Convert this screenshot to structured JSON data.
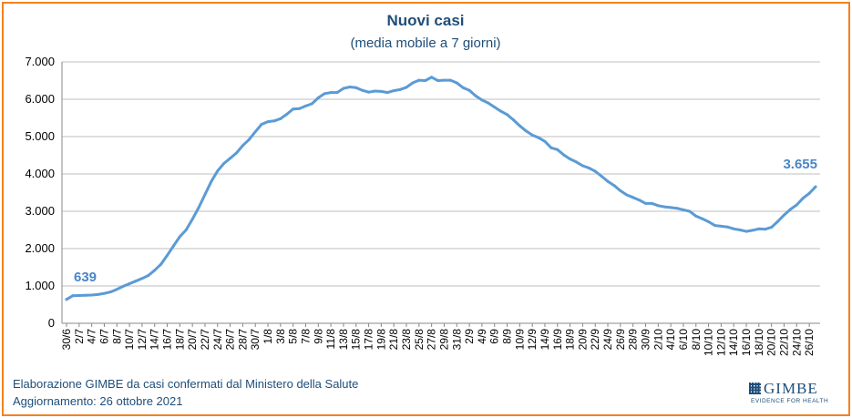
{
  "chart_data": {
    "type": "line",
    "title": "Nuovi casi",
    "subtitle": "(media mobile a 7 giorni)",
    "ylim": [
      0,
      7000
    ],
    "yticks": [
      {
        "value": 0,
        "label": "0"
      },
      {
        "value": 1000,
        "label": "1.000"
      },
      {
        "value": 2000,
        "label": "2.000"
      },
      {
        "value": 3000,
        "label": "3.000"
      },
      {
        "value": 4000,
        "label": "4.000"
      },
      {
        "value": 5000,
        "label": "5.000"
      },
      {
        "value": 6000,
        "label": "6.000"
      },
      {
        "value": 7000,
        "label": "7.000"
      }
    ],
    "grid": true,
    "line_color": "#5b9bd5",
    "label_color": "#4a86c8",
    "xtick_labels": [
      "30/6",
      "2/7",
      "4/7",
      "6/7",
      "8/7",
      "10/7",
      "12/7",
      "14/7",
      "16/7",
      "18/7",
      "20/7",
      "22/7",
      "24/7",
      "26/7",
      "28/7",
      "30/7",
      "1/8",
      "3/8",
      "5/8",
      "7/8",
      "9/8",
      "11/8",
      "13/8",
      "15/8",
      "17/8",
      "19/8",
      "21/8",
      "23/8",
      "25/8",
      "27/8",
      "29/8",
      "31/8",
      "2/9",
      "4/9",
      "6/9",
      "8/9",
      "10/9",
      "12/9",
      "14/9",
      "16/9",
      "18/9",
      "20/9",
      "22/9",
      "24/9",
      "26/9",
      "28/9",
      "30/9",
      "2/10",
      "4/10",
      "6/10",
      "8/10",
      "10/10",
      "12/10",
      "14/10",
      "16/10",
      "18/10",
      "20/10",
      "22/10",
      "24/10",
      "26/10"
    ],
    "series": [
      {
        "values": [
          639,
          740,
          745,
          750,
          755,
          770,
          800,
          840,
          910,
          990,
          1060,
          1130,
          1200,
          1280,
          1420,
          1580,
          1820,
          2070,
          2320,
          2500,
          2790,
          3100,
          3450,
          3800,
          4080,
          4280,
          4420,
          4560,
          4760,
          4920,
          5130,
          5330,
          5400,
          5420,
          5480,
          5600,
          5740,
          5750,
          5820,
          5880,
          6040,
          6150,
          6180,
          6180,
          6290,
          6330,
          6310,
          6240,
          6190,
          6220,
          6210,
          6180,
          6230,
          6260,
          6320,
          6440,
          6510,
          6500,
          6590,
          6500,
          6510,
          6510,
          6440,
          6310,
          6240,
          6090,
          5980,
          5900,
          5790,
          5680,
          5590,
          5450,
          5290,
          5150,
          5040,
          4970,
          4870,
          4700,
          4650,
          4510,
          4400,
          4320,
          4220,
          4160,
          4070,
          3940,
          3800,
          3690,
          3550,
          3440,
          3370,
          3300,
          3210,
          3210,
          3150,
          3120,
          3100,
          3080,
          3040,
          3000,
          2870,
          2800,
          2720,
          2620,
          2600,
          2580,
          2530,
          2500,
          2460,
          2490,
          2530,
          2520,
          2570,
          2730,
          2900,
          3050,
          3170,
          3350,
          3480,
          3655
        ]
      }
    ],
    "annotations": [
      {
        "index": 0,
        "label": "639"
      },
      {
        "index": 119,
        "label": "3.655"
      }
    ]
  },
  "footer": {
    "line1_a": "Elaborazione GIMBE",
    "line1_b": "da casi confermati dal Ministero della Salute",
    "line2": "Aggiornamento: 26 ottobre 2021"
  },
  "logo": {
    "word": "GIMBE",
    "tagline": "EVIDENCE FOR HEALTH"
  }
}
